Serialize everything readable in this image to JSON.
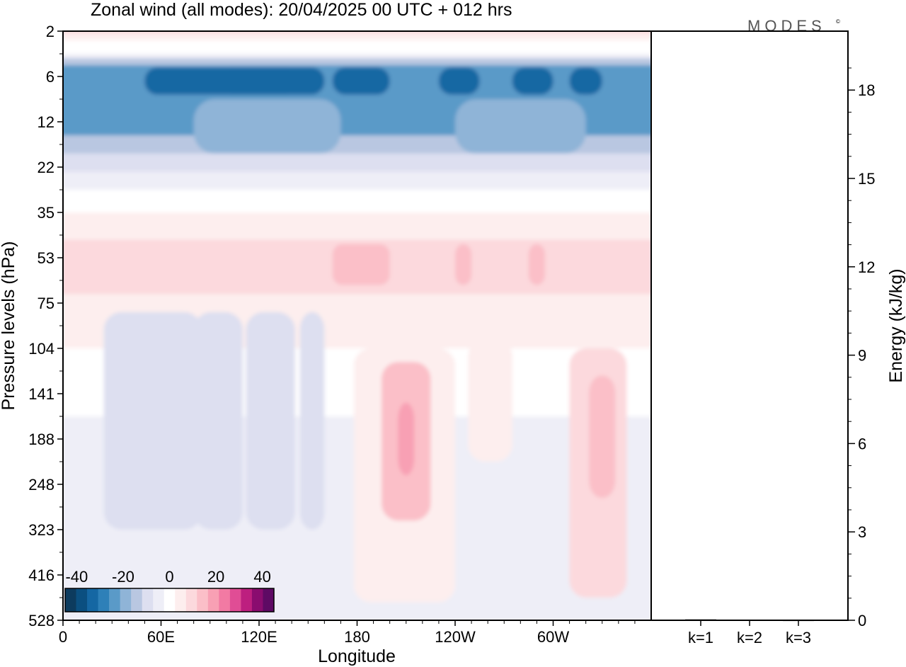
{
  "brand": {
    "logo_text": "MODES",
    "logo_mark": "©"
  },
  "chart_data": [
    {
      "type": "heatmap",
      "title": "Zonal wind (all modes):  20/04/2025  00 UTC  + 012 hrs",
      "xlabel": "Longitude",
      "ylabel": "Pressure levels (hPa)",
      "x_ticks": [
        "0",
        "60E",
        "120E",
        "180",
        "120W",
        "60W"
      ],
      "x_range_deg_east": [
        0,
        360
      ],
      "y_ticks": [
        "2",
        "6",
        "12",
        "22",
        "35",
        "53",
        "75",
        "104",
        "141",
        "188",
        "248",
        "323",
        "416",
        "528"
      ],
      "y_range_hPa": [
        2,
        528
      ],
      "colorbar": {
        "ticks": [
          "-40",
          "-20",
          "0",
          "20",
          "40"
        ],
        "range": [
          -45,
          45
        ],
        "step": 5,
        "colors": [
          "#0d3b5e",
          "#0b4f80",
          "#1567a3",
          "#2e80b8",
          "#5a9ac8",
          "#8fb4d7",
          "#b9c7e1",
          "#dddff0",
          "#eeeef7",
          "#ffffff",
          "#fdeeee",
          "#fcd9dd",
          "#fbbfc8",
          "#f8a0b4",
          "#f27aa3",
          "#e04d95",
          "#bd1f7f",
          "#8a0c6f",
          "#5e0a64"
        ]
      },
      "bands": [
        {
          "pressure": 2,
          "description_values_m_s": [
            5,
            10
          ]
        },
        {
          "pressure": 6,
          "min_m_s": -35,
          "typical_m_s": -25
        },
        {
          "pressure": 12,
          "typical_m_s": -20
        },
        {
          "pressure": 22,
          "typical_m_s": -10
        },
        {
          "pressure": 35,
          "typical_m_s": 3
        },
        {
          "pressure": 53,
          "typical_m_s": 8
        },
        {
          "pressure": 141,
          "max_m_s": 22,
          "max_longitude": "160W"
        }
      ]
    },
    {
      "type": "bar",
      "categories": [
        "k=1",
        "k=2",
        "k=3"
      ],
      "values": [
        0.03,
        0.02,
        0.01
      ],
      "ylabel": "Energy (kJ/kg)",
      "y_ticks": [
        "0",
        "3",
        "6",
        "9",
        "12",
        "15",
        "18"
      ],
      "ylim": [
        0,
        20
      ]
    }
  ]
}
